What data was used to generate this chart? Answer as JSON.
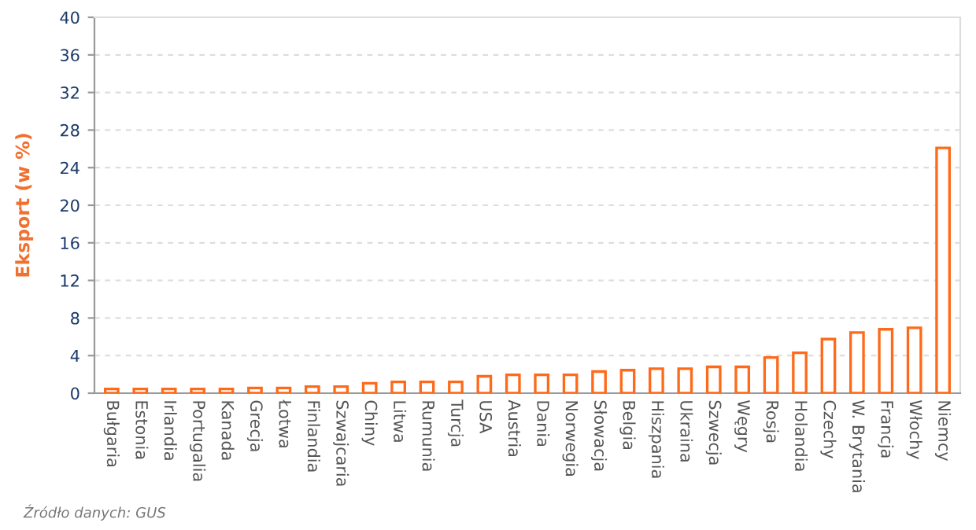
{
  "chart_data": {
    "type": "bar",
    "ylabel": "Eksport (w %)",
    "categories": [
      "Bułgaria",
      "Estonia",
      "Irlandia",
      "Portugalia",
      "Kanada",
      "Grecja",
      "Łotwa",
      "Finlandia",
      "Szwajcaria",
      "Chiny",
      "Litwa",
      "Rumunia",
      "Turcja",
      "USA",
      "Austria",
      "Dania",
      "Norwegia",
      "Słowacja",
      "Belgia",
      "Hiszpania",
      "Ukraina",
      "Szwecja",
      "Węgry",
      "Rosja",
      "Holandia",
      "Czechy",
      "W. Brytania",
      "Francja",
      "Włochy",
      "Niemcy"
    ],
    "values": [
      0.45,
      0.45,
      0.45,
      0.45,
      0.45,
      0.55,
      0.55,
      0.7,
      0.7,
      1.05,
      1.2,
      1.2,
      1.2,
      1.8,
      1.95,
      1.95,
      1.95,
      2.3,
      2.45,
      2.6,
      2.6,
      2.8,
      2.8,
      3.8,
      4.3,
      5.75,
      6.45,
      6.8,
      6.95,
      26.1
    ],
    "color": "#ff6a1a",
    "ylim": [
      0,
      40
    ],
    "yticks": [
      0,
      4,
      8,
      12,
      16,
      20,
      24,
      28,
      32,
      36,
      40
    ],
    "grid": "y",
    "annotations": [
      "Źródło danych: GUS"
    ]
  }
}
